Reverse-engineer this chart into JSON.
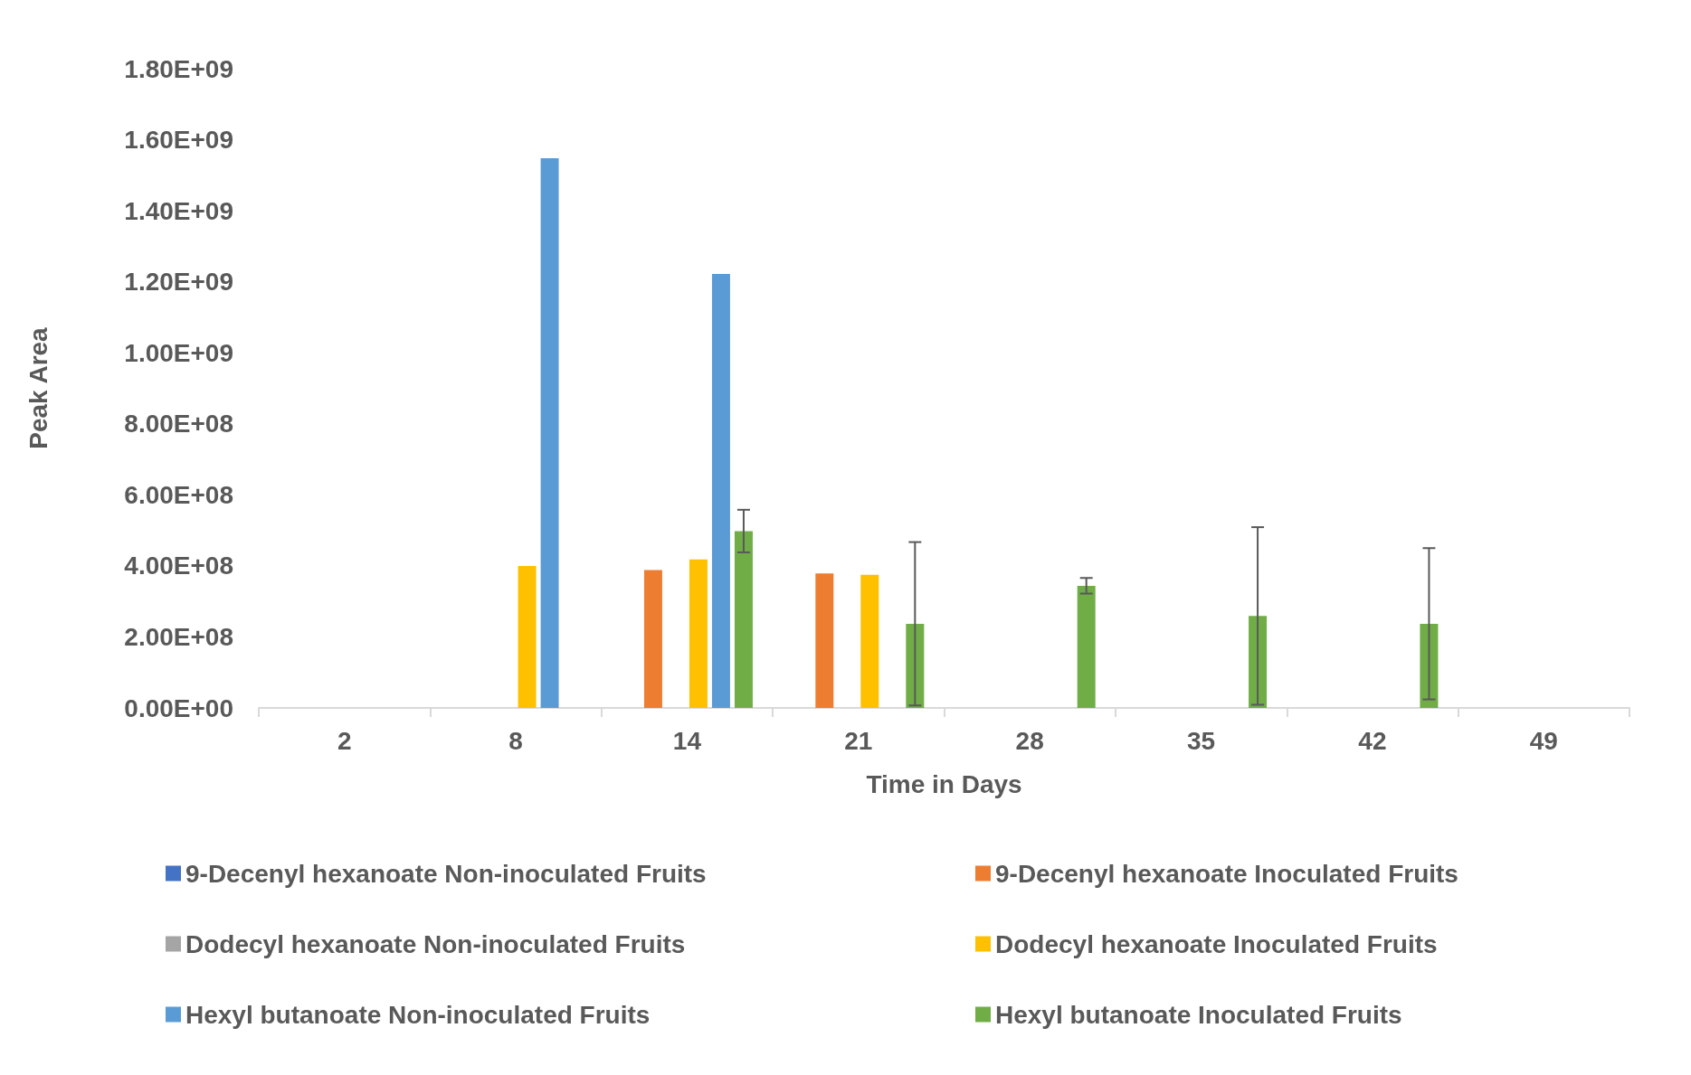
{
  "chart_data": {
    "type": "bar",
    "xlabel": "Time in Days",
    "ylabel": "Peak Area",
    "categories": [
      "2",
      "8",
      "14",
      "21",
      "28",
      "35",
      "42",
      "49"
    ],
    "series": [
      {
        "name": "9-Decenyl hexanoate Non-inoculated Fruits",
        "color": "#4472c4",
        "values": [
          null,
          null,
          null,
          null,
          null,
          null,
          null,
          null
        ]
      },
      {
        "name": "9-Decenyl hexanoate Inoculated Fruits",
        "color": "#ed7d31",
        "values": [
          null,
          null,
          388000000,
          379000000,
          null,
          null,
          null,
          null
        ]
      },
      {
        "name": "Dodecyl hexanoate Non-inoculated Fruits",
        "color": "#a5a5a5",
        "values": [
          null,
          null,
          null,
          null,
          null,
          null,
          null,
          null
        ]
      },
      {
        "name": "Dodecyl hexanoate Inoculated Fruits",
        "color": "#ffc000",
        "values": [
          null,
          400000000,
          418000000,
          375000000,
          null,
          null,
          null,
          null
        ]
      },
      {
        "name": "Hexyl butanoate Non-inoculated Fruits",
        "color": "#5b9bd5",
        "values": [
          null,
          1548000000,
          1222000000,
          null,
          null,
          null,
          null,
          null
        ]
      },
      {
        "name": "Hexyl butanoate Inoculated Fruits",
        "color": "#70ad47",
        "values": [
          null,
          null,
          498000000,
          237000000,
          344000000,
          259000000,
          237000000,
          null
        ],
        "errors": [
          null,
          null,
          60000000,
          230000000,
          22000000,
          250000000,
          213000000,
          null
        ]
      }
    ],
    "ylim": [
      0,
      1800000000
    ],
    "yticks": [
      {
        "value": 0,
        "label": "0.00E+00"
      },
      {
        "value": 200000000,
        "label": "2.00E+08"
      },
      {
        "value": 400000000,
        "label": "4.00E+08"
      },
      {
        "value": 600000000,
        "label": "6.00E+08"
      },
      {
        "value": 800000000,
        "label": "8.00E+08"
      },
      {
        "value": 1000000000,
        "label": "1.00E+09"
      },
      {
        "value": 1200000000,
        "label": "1.20E+09"
      },
      {
        "value": 1400000000,
        "label": "1.40E+09"
      },
      {
        "value": 1600000000,
        "label": "1.60E+09"
      },
      {
        "value": 1800000000,
        "label": "1.80E+09"
      }
    ],
    "grid": false,
    "legend": "bottom"
  }
}
